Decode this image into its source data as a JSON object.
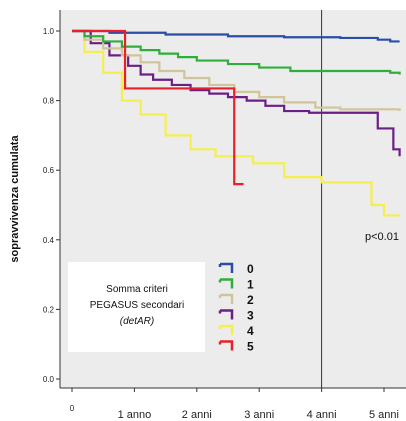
{
  "chart_data": {
    "type": "line",
    "step": true,
    "ylabel": "sopravvivenza cumulata",
    "ylim": [
      0.0,
      1.0
    ],
    "yticks": [
      "0.0",
      "0.2",
      "0.4",
      "0.6",
      "0.8",
      "1.0"
    ],
    "xlim": [
      0,
      5.25
    ],
    "xticks": [
      {
        "value": 0,
        "label": "0"
      },
      {
        "value": 1,
        "label": "1 anno"
      },
      {
        "value": 2,
        "label": "2 anni"
      },
      {
        "value": 3,
        "label": "3 anni"
      },
      {
        "value": 4,
        "label": "4 anni"
      },
      {
        "value": 5,
        "label": "5 anni"
      }
    ],
    "reference_line_x": 4,
    "annotation": "p<0.01",
    "legend_title_lines": [
      "Somma criteri",
      "PEGASUS secondari"
    ],
    "legend_title_italic": "(detAR)",
    "background_color": "#ececec",
    "series": [
      {
        "name": "0",
        "color": "#2a4ea6",
        "points": [
          [
            0,
            1.0
          ],
          [
            0.6,
            0.995
          ],
          [
            1.5,
            0.99
          ],
          [
            2.5,
            0.985
          ],
          [
            3.4,
            0.982
          ],
          [
            4.3,
            0.98
          ],
          [
            4.9,
            0.975
          ],
          [
            5.1,
            0.97
          ],
          [
            5.25,
            0.97
          ]
        ]
      },
      {
        "name": "1",
        "color": "#2fae3c",
        "points": [
          [
            0,
            1.0
          ],
          [
            0.2,
            0.985
          ],
          [
            0.5,
            0.97
          ],
          [
            0.8,
            0.955
          ],
          [
            1.1,
            0.945
          ],
          [
            1.4,
            0.935
          ],
          [
            1.7,
            0.925
          ],
          [
            2.0,
            0.915
          ],
          [
            2.5,
            0.905
          ],
          [
            3.0,
            0.895
          ],
          [
            3.5,
            0.885
          ],
          [
            4.0,
            0.885
          ],
          [
            4.6,
            0.885
          ],
          [
            5.1,
            0.88
          ],
          [
            5.25,
            0.875
          ]
        ]
      },
      {
        "name": "2",
        "color": "#cfc49a",
        "points": [
          [
            0,
            1.0
          ],
          [
            0.2,
            0.975
          ],
          [
            0.5,
            0.95
          ],
          [
            0.8,
            0.93
          ],
          [
            1.1,
            0.91
          ],
          [
            1.4,
            0.885
          ],
          [
            1.8,
            0.865
          ],
          [
            2.2,
            0.845
          ],
          [
            2.6,
            0.825
          ],
          [
            3.0,
            0.81
          ],
          [
            3.4,
            0.795
          ],
          [
            3.9,
            0.78
          ],
          [
            4.3,
            0.775
          ],
          [
            4.8,
            0.775
          ],
          [
            5.25,
            0.77
          ]
        ]
      },
      {
        "name": "3",
        "color": "#6b1f86",
        "points": [
          [
            0,
            1.0
          ],
          [
            0.3,
            0.965
          ],
          [
            0.6,
            0.93
          ],
          [
            0.9,
            0.9
          ],
          [
            1.1,
            0.875
          ],
          [
            1.3,
            0.86
          ],
          [
            1.6,
            0.845
          ],
          [
            1.9,
            0.83
          ],
          [
            2.2,
            0.82
          ],
          [
            2.5,
            0.81
          ],
          [
            2.8,
            0.8
          ],
          [
            3.1,
            0.785
          ],
          [
            3.4,
            0.77
          ],
          [
            3.8,
            0.765
          ],
          [
            4.5,
            0.765
          ],
          [
            4.9,
            0.72
          ],
          [
            5.15,
            0.66
          ],
          [
            5.25,
            0.64
          ]
        ]
      },
      {
        "name": "4",
        "color": "#f4ef4f",
        "points": [
          [
            0,
            1.0
          ],
          [
            0.2,
            0.94
          ],
          [
            0.5,
            0.88
          ],
          [
            0.8,
            0.8
          ],
          [
            1.1,
            0.76
          ],
          [
            1.5,
            0.7
          ],
          [
            1.9,
            0.66
          ],
          [
            2.3,
            0.64
          ],
          [
            2.9,
            0.62
          ],
          [
            3.4,
            0.58
          ],
          [
            4.0,
            0.565
          ],
          [
            4.5,
            0.565
          ],
          [
            4.8,
            0.5
          ],
          [
            5.0,
            0.47
          ],
          [
            5.25,
            0.47
          ]
        ]
      },
      {
        "name": "5",
        "color": "#e8202a",
        "points": [
          [
            0,
            1.0
          ],
          [
            0.85,
            0.985
          ],
          [
            0.85,
            0.9
          ],
          [
            0.85,
            0.835
          ],
          [
            2.6,
            0.835
          ],
          [
            2.6,
            0.56
          ],
          [
            2.75,
            0.56
          ]
        ]
      }
    ]
  }
}
